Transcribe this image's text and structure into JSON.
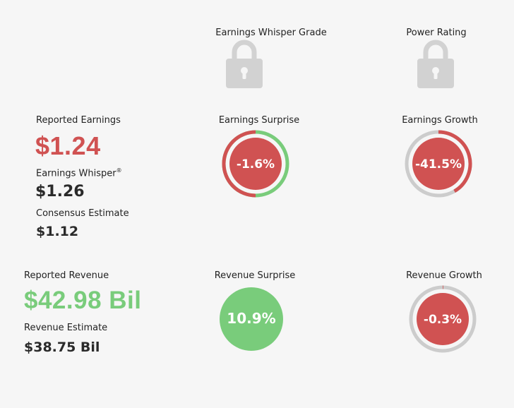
{
  "grades": {
    "whisper_grade_label": "Earnings Whisper Grade",
    "power_rating_label": "Power Rating",
    "lock_icon": "lock-icon"
  },
  "earnings": {
    "reported_label": "Reported Earnings",
    "reported_value": "$1.24",
    "whisper_label": "Earnings Whisper",
    "whisper_mark": "®",
    "whisper_value": "$1.26",
    "consensus_label": "Consensus Estimate",
    "consensus_value": "$1.12",
    "surprise_label": "Earnings Surprise",
    "surprise_value": "-1.6%",
    "growth_label": "Earnings Growth",
    "growth_value": "-41.5%"
  },
  "revenue": {
    "reported_label": "Reported Revenue",
    "reported_value": "$42.98 Bil",
    "estimate_label": "Revenue Estimate",
    "estimate_value": "$38.75 Bil",
    "surprise_label": "Revenue Surprise",
    "surprise_value": "10.9%",
    "growth_label": "Revenue Growth",
    "growth_value": "-0.3%"
  },
  "colors": {
    "red": "#d05252",
    "green": "#79cc7b",
    "gray_ring": "#cccccc",
    "lock_gray": "#d2d2d2",
    "background": "#f6f6f6"
  }
}
